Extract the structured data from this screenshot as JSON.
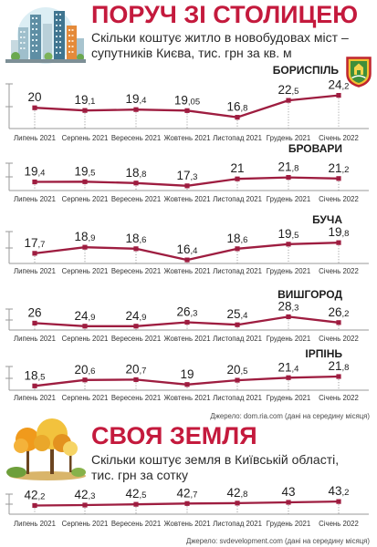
{
  "housing": {
    "title": "ПОРУЧ ЗІ СТОЛИЦЕЮ",
    "subtitle": [
      "Скільки коштує житло в новобудовах міст –",
      "супутників Києва, тис. грн за кв. м"
    ],
    "source": "Джерело: dom.ria.com (дані на середину місяця)"
  },
  "land": {
    "title": "СВОЯ ЗЕМЛЯ",
    "subtitle": [
      "Скільки коштує земля в Київській області,",
      "тис. грн за сотку"
    ],
    "source": "Джерело: svdevelopment.com (дані на середину місяця)"
  },
  "icons": {
    "housing": "city-skyline-icon",
    "boryspil": "coat-of-arms-icon",
    "land": "autumn-trees-icon"
  },
  "colors": {
    "accent": "#c41a3d",
    "series": "#9e1d40",
    "axis": "#9a9a9a",
    "drop_line": "#8a8a8a",
    "label": "#202020"
  },
  "chart_data": [
    {
      "type": "line",
      "title": "БОРИСПІЛЬ",
      "categories": [
        "Липень 2021",
        "Серпень 2021",
        "Вересень 2021",
        "Жовтень 2021",
        "Листопад 2021",
        "Грудень 2021",
        "Січень 2022"
      ],
      "values": [
        20,
        19.1,
        19.4,
        19.05,
        16.8,
        22.5,
        24.2
      ],
      "labels": [
        "20",
        "19,1",
        "19,4",
        "19,05",
        "16,8",
        "22,5",
        "24,2"
      ],
      "ylim": [
        13,
        29.3
      ],
      "grid": false
    },
    {
      "type": "line",
      "title": "БРОВАРИ",
      "categories": [
        "Липень 2021",
        "Серпень 2021",
        "Вересень 2021",
        "Жовтень 2021",
        "Листопад 2021",
        "Грудень 2021",
        "Січень 2022"
      ],
      "values": [
        19.4,
        19.5,
        18.8,
        17.3,
        21,
        21.8,
        21.2
      ],
      "labels": [
        "19,4",
        "19,5",
        "18,8",
        "17,3",
        "21",
        "21,8",
        "21,2"
      ],
      "ylim": [
        14.8,
        31.3
      ],
      "grid": false
    },
    {
      "type": "line",
      "title": "БУЧА",
      "categories": [
        "Липень 2021",
        "Серпень 2021",
        "Вересень 2021",
        "Жовтень 2021",
        "Листопад 2021",
        "Грудень 2021",
        "Січень 2022"
      ],
      "values": [
        17.7,
        18.9,
        18.6,
        16.4,
        18.6,
        19.5,
        19.8
      ],
      "labels": [
        "17,7",
        "18,9",
        "18,6",
        "16,4",
        "18,6",
        "19,5",
        "19,8"
      ],
      "ylim": [
        15.7,
        22.7
      ],
      "grid": false
    },
    {
      "type": "line",
      "title": "ВИШГОРОД",
      "categories": [
        "Липень 2021",
        "Серпень 2021",
        "Вересень 2021",
        "Жовтень 2021",
        "Листопад 2021",
        "Грудень 2021",
        "Січень 2022"
      ],
      "values": [
        26,
        24.9,
        24.9,
        26.3,
        25.4,
        28.3,
        26.2
      ],
      "labels": [
        "26",
        "24,9",
        "24,9",
        "26,3",
        "25,4",
        "28,3",
        "26,2"
      ],
      "ylim": [
        23.5,
        32.4
      ],
      "grid": false
    },
    {
      "type": "line",
      "title": "ІРПІНЬ",
      "categories": [
        "Липень 2021",
        "Серпень 2021",
        "Вересень 2021",
        "Жовтень 2021",
        "Листопад 2021",
        "Грудень 2021",
        "Січень 2022"
      ],
      "values": [
        18.5,
        20.6,
        20.7,
        19,
        20.5,
        21.4,
        21.8
      ],
      "labels": [
        "18,5",
        "20,6",
        "20,7",
        "19",
        "20,5",
        "21,4",
        "21,8"
      ],
      "ylim": [
        17,
        26.6
      ],
      "grid": false
    },
    {
      "type": "line",
      "categories": [
        "Липень 2021",
        "Серпень 2021",
        "Вересень 2021",
        "Жовтень 2021",
        "Листопад 2021",
        "Грудень 2021",
        "Січень 2022"
      ],
      "values": [
        42.2,
        42.3,
        42.5,
        42.7,
        42.8,
        43,
        43.2
      ],
      "labels": [
        "42,2",
        "42,3",
        "42,5",
        "42,7",
        "42,8",
        "43",
        "43,2"
      ],
      "ylim": [
        40,
        46
      ],
      "grid": false
    }
  ]
}
